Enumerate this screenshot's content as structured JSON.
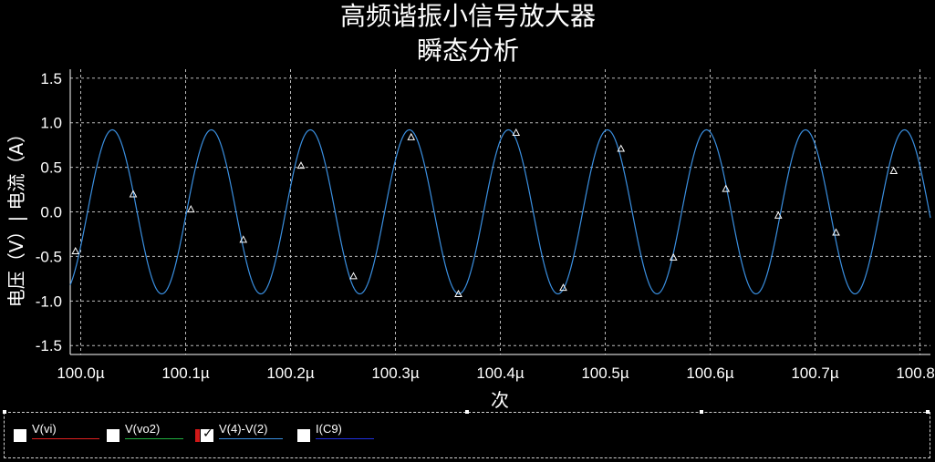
{
  "chart_data": {
    "type": "line",
    "title": "高频谐振小信号放大器",
    "subtitle": "瞬态分析",
    "xlabel": "次",
    "ylabel": "电压（V）| 电流（A）",
    "xlim": [
      99.99,
      100.81
    ],
    "ylim": [
      -1.6,
      1.6
    ],
    "x_ticks": [
      100.0,
      100.1,
      100.2,
      100.3,
      100.4,
      100.5,
      100.6,
      100.7,
      100.8
    ],
    "x_tick_labels": [
      "100.0µ",
      "100.1µ",
      "100.2µ",
      "100.3µ",
      "100.4µ",
      "100.5µ",
      "100.6µ",
      "100.7µ",
      "100.8µ"
    ],
    "y_ticks": [
      1.5,
      1.0,
      0.5,
      0.0,
      -0.5,
      -1.0,
      -1.5
    ],
    "y_tick_labels": [
      "1.5",
      "1.0",
      "0.5",
      "0.0",
      "-0.5",
      "-1.0",
      "-1.5"
    ],
    "grid": true,
    "series": [
      {
        "name": "V(4)-V(2)",
        "color": "#3a8fe0",
        "waveform": {
          "amplitude": 0.92,
          "period": 0.0944,
          "peak_x": 100.0301
        },
        "marker_x": [
          99.995,
          100.05,
          100.105,
          100.155,
          100.21,
          100.26,
          100.315,
          100.36,
          100.415,
          100.46,
          100.515,
          100.565,
          100.615,
          100.665,
          100.72,
          100.775
        ],
        "marker_y": [
          -0.44,
          0.2,
          0.03,
          -0.31,
          0.52,
          -0.72,
          0.84,
          -0.92,
          0.89,
          -0.85,
          0.71,
          -0.51,
          0.26,
          -0.04,
          -0.23,
          0.46
        ]
      }
    ]
  },
  "legend": {
    "items": [
      {
        "label": "V(vi)",
        "color": "#e02020",
        "checked": false
      },
      {
        "label": "V(vo2)",
        "color": "#20b040",
        "checked": false
      },
      {
        "label": "V(4)-V(2)",
        "color": "#3a8fe0",
        "checked": true
      },
      {
        "label": "I(C9)",
        "color": "#2030e0",
        "checked": false
      }
    ],
    "check_glyph": "✓"
  }
}
